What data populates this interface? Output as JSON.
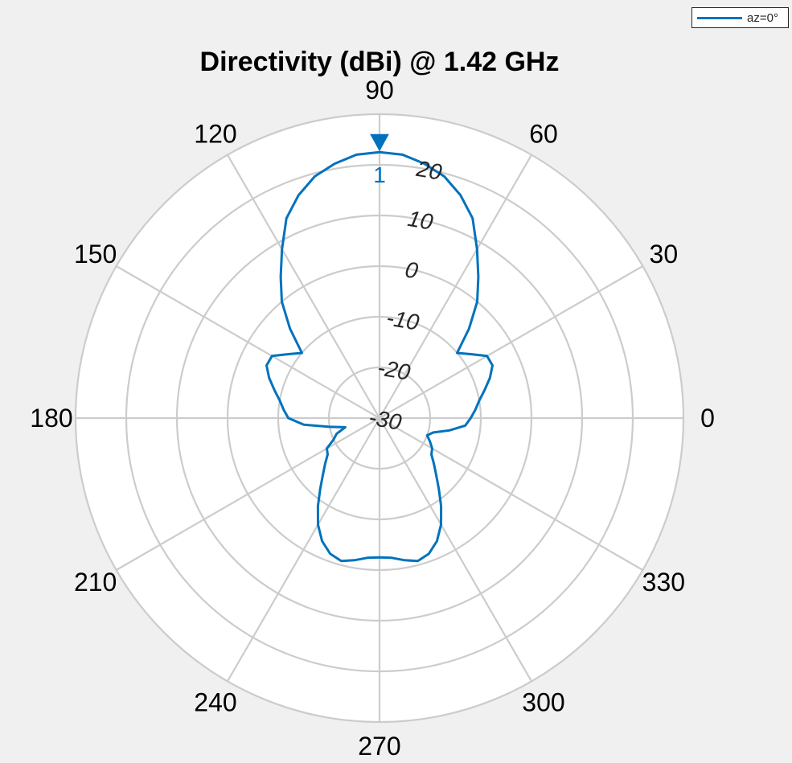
{
  "chart_data": {
    "type": "polar-line",
    "title": "Directivity (dBi) @ 1.42 GHz",
    "angular_ticks": [
      "0",
      "30",
      "60",
      "90",
      "120",
      "150",
      "180",
      "210",
      "240",
      "270",
      "300",
      "330"
    ],
    "angular_tick_values_deg": [
      0,
      30,
      60,
      90,
      120,
      150,
      180,
      210,
      240,
      270,
      300,
      330
    ],
    "radial_tick_labels": [
      "-30",
      "-20",
      "-10",
      "0",
      "10",
      "20"
    ],
    "radial_tick_values": [
      -30,
      -20,
      -10,
      0,
      10,
      20
    ],
    "rlim": [
      -30,
      30
    ],
    "grid": true,
    "legend_position": "top-right",
    "marker": {
      "label": "1",
      "angle_deg": 90,
      "value_dbi": 22.5
    },
    "series": [
      {
        "name": "az=0°",
        "color": "#0072bd",
        "angles_deg": [
          0,
          5,
          10,
          15,
          20,
          25,
          30,
          35,
          40,
          45,
          50,
          55,
          60,
          65,
          70,
          75,
          80,
          85,
          90,
          95,
          100,
          105,
          110,
          115,
          120,
          125,
          130,
          135,
          140,
          145,
          150,
          155,
          160,
          165,
          170,
          175,
          180,
          185,
          190,
          195,
          200,
          205,
          210,
          215,
          220,
          225,
          230,
          235,
          240,
          245,
          250,
          255,
          260,
          265,
          270,
          275,
          280,
          285,
          290,
          295,
          300,
          305,
          310,
          315,
          320,
          325,
          330,
          335,
          340,
          345,
          350,
          355
        ],
        "values_dbi": [
          -12,
          -11,
          -10,
          -8.5,
          -6.8,
          -5.4,
          -5.5,
          -8,
          -10,
          -5,
          0,
          4,
          8.5,
          13.5,
          16.8,
          19.4,
          21,
          22.2,
          22.5,
          22.2,
          21,
          19.4,
          16.8,
          13.5,
          8.5,
          4,
          0,
          -5,
          -10,
          -8,
          -5.5,
          -5.4,
          -6.8,
          -8.5,
          -10,
          -11,
          -12,
          -15,
          -20,
          -23,
          -21,
          -20,
          -18,
          -17.5,
          -16,
          -14.2,
          -11.8,
          -8.8,
          -5.7,
          -3.2,
          -1.5,
          -0.8,
          -1.5,
          -2.3,
          -2.5,
          -2.3,
          -1.5,
          -0.8,
          -1.5,
          -3.2,
          -5.7,
          -8.8,
          -11.8,
          -14.2,
          -16,
          -17.5,
          -18,
          -19,
          -20,
          -19,
          -16,
          -13
        ]
      }
    ]
  }
}
